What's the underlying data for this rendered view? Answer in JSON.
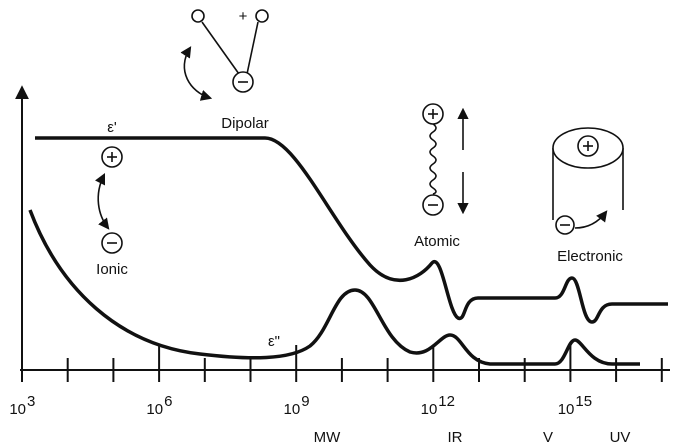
{
  "curves": {
    "real": "ε'",
    "imaginary": "ε\""
  },
  "mechanisms": {
    "dipolar": "Dipolar",
    "ionic": "Ionic",
    "atomic": "Atomic",
    "electronic": "Electronic"
  },
  "icon_signs": {
    "plus": "+"
  },
  "x_axis": {
    "tick_labels": [
      {
        "base": "10",
        "exponent": "3"
      },
      {
        "base": "10",
        "exponent": "6"
      },
      {
        "base": "10",
        "exponent": "9"
      },
      {
        "base": "10",
        "exponent": "12"
      },
      {
        "base": "10",
        "exponent": "15"
      }
    ],
    "bands": [
      "MW",
      "IR",
      "V",
      "UV"
    ]
  }
}
